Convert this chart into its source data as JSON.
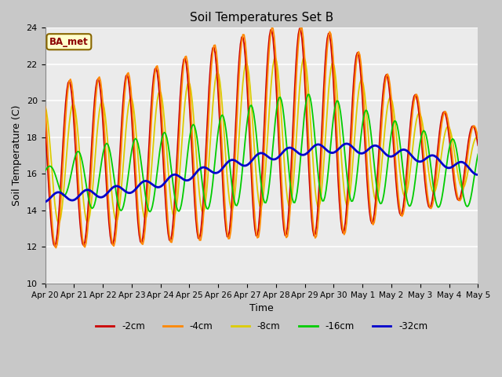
{
  "title": "Soil Temperatures Set B",
  "xlabel": "Time",
  "ylabel": "Soil Temperature (C)",
  "ylim": [
    10,
    24
  ],
  "tick_labels": [
    "Apr 20",
    "Apr 21",
    "Apr 22",
    "Apr 23",
    "Apr 24",
    "Apr 25",
    "Apr 26",
    "Apr 27",
    "Apr 28",
    "Apr 29",
    "Apr 30",
    "May 1",
    "May 2",
    "May 3",
    "May 4",
    "May 5"
  ],
  "colors": {
    "-2cm": "#cc0000",
    "-4cm": "#ff8800",
    "-8cm": "#ddcc00",
    "-16cm": "#00cc00",
    "-32cm": "#0000cc"
  },
  "annotation_text": "BA_met",
  "annotation_bg": "#ffffcc",
  "annotation_border": "#886600",
  "plot_bg": "#ebebeb",
  "fig_bg": "#c8c8c8"
}
